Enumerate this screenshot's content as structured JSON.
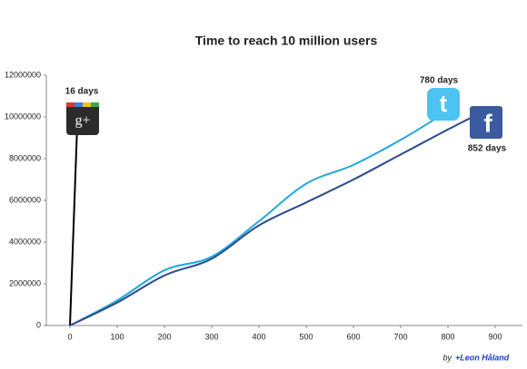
{
  "chart_data": {
    "type": "line",
    "title": "Time to reach 10 million users",
    "series": [
      {
        "color": "#000000",
        "x": [
          0,
          16
        ],
        "values": [
          0,
          10000000
        ]
      },
      {
        "color": "#1ea7e1",
        "x": [
          0,
          100,
          200,
          300,
          400,
          500,
          600,
          700,
          780
        ],
        "values": [
          0,
          1200000,
          2650000,
          3300000,
          5000000,
          6800000,
          7700000,
          8900000,
          10000000
        ]
      },
      {
        "color": "#2d4b8e",
        "x": [
          0,
          100,
          200,
          300,
          400,
          500,
          600,
          700,
          800,
          852
        ],
        "values": [
          0,
          1100000,
          2400000,
          3200000,
          4800000,
          5900000,
          7000000,
          8200000,
          9400000,
          10000000
        ]
      }
    ],
    "annotations": [
      "16 days",
      "780 days",
      "852 days"
    ],
    "icons": [
      "g+",
      "t",
      "f"
    ],
    "credit_prefix": "by",
    "credit_author": "+Leon Håland",
    "xlim": [
      -50,
      950
    ],
    "xticks": [
      0,
      100,
      200,
      300,
      400,
      500,
      600,
      700,
      800,
      900
    ],
    "ylim": [
      0,
      12000000
    ],
    "yticks": [
      0,
      2000000,
      4000000,
      6000000,
      8000000,
      10000000,
      12000000
    ],
    "grid": false
  }
}
